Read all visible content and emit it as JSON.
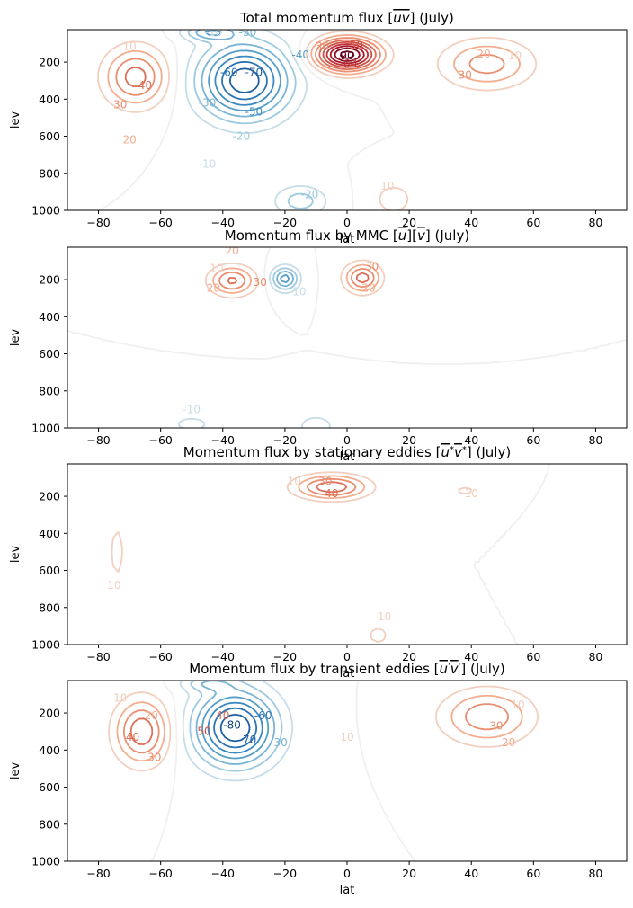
{
  "chart_data": [
    {
      "type": "contour",
      "title": "Total momentum flux [$\\overline{uv}$] (July)",
      "title_parts": [
        "Total momentum flux [",
        "uv",
        "] (July)"
      ],
      "xlabel": "lat",
      "ylabel": "lev",
      "xlim": [
        -90,
        90
      ],
      "ylim": [
        1000,
        25
      ],
      "y_inverted": true,
      "xticks": [
        -80,
        -60,
        -40,
        -20,
        0,
        20,
        40,
        60,
        80
      ],
      "yticks": [
        200,
        400,
        600,
        800,
        1000
      ],
      "colormap": "RdBu_r",
      "features": [
        {
          "lat": -68,
          "lev": 280,
          "peak": 45,
          "sx": 7,
          "sy": 110
        },
        {
          "lat": -33,
          "lev": 300,
          "peak": -78,
          "sx": 10,
          "sy": 140
        },
        {
          "lat": -44,
          "lev": 40,
          "peak": -35,
          "sx": 6,
          "sy": 30
        },
        {
          "lat": 0,
          "lev": 160,
          "peak": 95,
          "sx": 7,
          "sy": 60
        },
        {
          "lat": 45,
          "lev": 210,
          "peak": 35,
          "sx": 10,
          "sy": 90
        },
        {
          "lat": 15,
          "lev": 940,
          "peak": 15,
          "sx": 5,
          "sy": 70
        },
        {
          "lat": -15,
          "lev": 950,
          "peak": -25,
          "sx": 6,
          "sy": 60
        }
      ],
      "contour_labels": [
        {
          "lat": -70,
          "lev": 115,
          "text": "10"
        },
        {
          "lat": -65,
          "lev": 325,
          "text": "40"
        },
        {
          "lat": -73,
          "lev": 430,
          "text": "30"
        },
        {
          "lat": -70,
          "lev": 620,
          "text": "20"
        },
        {
          "lat": -43,
          "lev": 40,
          "text": "-10"
        },
        {
          "lat": -32,
          "lev": 40,
          "text": "-30"
        },
        {
          "lat": -38,
          "lev": 255,
          "text": "-60"
        },
        {
          "lat": -30,
          "lev": 255,
          "text": "-70"
        },
        {
          "lat": -30,
          "lev": 470,
          "text": "-50"
        },
        {
          "lat": -45,
          "lev": 420,
          "text": "-30"
        },
        {
          "lat": -15,
          "lev": 160,
          "text": "-40"
        },
        {
          "lat": -34,
          "lev": 600,
          "text": "-20"
        },
        {
          "lat": -45,
          "lev": 750,
          "text": "-10"
        },
        {
          "lat": -8,
          "lev": 115,
          "text": "30"
        },
        {
          "lat": 3,
          "lev": 110,
          "text": "50"
        },
        {
          "lat": 0,
          "lev": 165,
          "text": "90"
        },
        {
          "lat": 1,
          "lev": 210,
          "text": "60"
        },
        {
          "lat": -12,
          "lev": 915,
          "text": "-20"
        },
        {
          "lat": 13,
          "lev": 870,
          "text": "10"
        },
        {
          "lat": 44,
          "lev": 155,
          "text": "20"
        },
        {
          "lat": 54,
          "lev": 165,
          "text": "10"
        },
        {
          "lat": 38,
          "lev": 270,
          "text": "30"
        }
      ]
    },
    {
      "type": "contour",
      "title": "Momentum flux by MMC [$\\overline{u}$][$\\overline{v}$] (July)",
      "title_parts": [
        "Momentum flux by MMC [",
        "u",
        "][",
        "v",
        "] (July)"
      ],
      "xlabel": "lat",
      "ylabel": "lev",
      "xlim": [
        -90,
        90
      ],
      "ylim": [
        1000,
        25
      ],
      "y_inverted": true,
      "xticks": [
        -80,
        -60,
        -40,
        -20,
        0,
        20,
        40,
        60,
        80
      ],
      "yticks": [
        200,
        400,
        600,
        800,
        1000
      ],
      "colormap": "RdBu_r",
      "features": [
        {
          "lat": -37,
          "lev": 205,
          "peak": 42,
          "sx": 5,
          "sy": 55
        },
        {
          "lat": -20,
          "lev": 195,
          "peak": -45,
          "sx": 3,
          "sy": 45
        },
        {
          "lat": 5,
          "lev": 190,
          "peak": 45,
          "sx": 4,
          "sy": 55
        },
        {
          "lat": -10,
          "lev": 990,
          "peak": -15,
          "sx": 5,
          "sy": 50
        },
        {
          "lat": -50,
          "lev": 980,
          "peak": -12,
          "sx": 7,
          "sy": 50
        }
      ],
      "contour_labels": [
        {
          "lat": -37,
          "lev": 45,
          "text": "20"
        },
        {
          "lat": -42,
          "lev": 140,
          "text": "10"
        },
        {
          "lat": -43,
          "lev": 245,
          "text": "20"
        },
        {
          "lat": -28,
          "lev": 215,
          "text": "30"
        },
        {
          "lat": -16,
          "lev": 265,
          "text": "-10"
        },
        {
          "lat": 8,
          "lev": 130,
          "text": "30"
        },
        {
          "lat": 7,
          "lev": 245,
          "text": "20"
        },
        {
          "lat": -50,
          "lev": 900,
          "text": "-10"
        }
      ]
    },
    {
      "type": "contour",
      "title": "Momentum flux by stationary eddies [$\\overline{u^*v^*}$] (July)",
      "title_parts": [
        "Momentum flux by stationary eddies [",
        "u",
        "*",
        "v",
        "*",
        "] (July)"
      ],
      "xlabel": "lat",
      "ylabel": "lev",
      "xlim": [
        -90,
        90
      ],
      "ylim": [
        1000,
        25
      ],
      "y_inverted": true,
      "xticks": [
        -80,
        -60,
        -40,
        -20,
        0,
        20,
        40,
        60,
        80
      ],
      "yticks": [
        200,
        400,
        600,
        800,
        1000
      ],
      "colormap": "RdBu_r",
      "features": [
        {
          "lat": -5,
          "lev": 150,
          "peak": 48,
          "sx": 8,
          "sy": 45
        },
        {
          "lat": -74,
          "lev": 500,
          "peak": 11,
          "sx": 4,
          "sy": 250
        },
        {
          "lat": 10,
          "lev": 950,
          "peak": 12,
          "sx": 4,
          "sy": 60
        },
        {
          "lat": 38,
          "lev": 170,
          "peak": 11,
          "sx": 5,
          "sy": 40
        },
        {
          "lat": 70,
          "lev": 400,
          "peak": -10,
          "sx": 3,
          "sy": 60
        }
      ],
      "contour_labels": [
        {
          "lat": -17,
          "lev": 120,
          "text": "10"
        },
        {
          "lat": -7,
          "lev": 120,
          "text": "30"
        },
        {
          "lat": -5,
          "lev": 185,
          "text": "40"
        },
        {
          "lat": 40,
          "lev": 185,
          "text": "10"
        },
        {
          "lat": -75,
          "lev": 680,
          "text": "10"
        },
        {
          "lat": 12,
          "lev": 850,
          "text": "10"
        }
      ]
    },
    {
      "type": "contour",
      "title": "Momentum flux by transient eddies [$\\overline{u'v'}$] (July)",
      "title_parts": [
        "Momentum flux by transient eddies [",
        "u",
        "'",
        "v",
        "'",
        "] (July)"
      ],
      "xlabel": "lat",
      "ylabel": "lev",
      "xlim": [
        -90,
        90
      ],
      "ylim": [
        1000,
        25
      ],
      "y_inverted": true,
      "xticks": [
        -80,
        -60,
        -40,
        -20,
        0,
        20,
        40,
        60,
        80
      ],
      "yticks": [
        200,
        400,
        600,
        800,
        1000
      ],
      "colormap": "RdBu_r",
      "features": [
        {
          "lat": -66,
          "lev": 300,
          "peak": 48,
          "sx": 6,
          "sy": 120
        },
        {
          "lat": -36,
          "lev": 280,
          "peak": -80,
          "sx": 9,
          "sy": 140
        },
        {
          "lat": -45,
          "lev": 40,
          "peak": -22,
          "sx": 6,
          "sy": 30
        },
        {
          "lat": 45,
          "lev": 220,
          "peak": 38,
          "sx": 10,
          "sy": 100
        }
      ],
      "contour_labels": [
        {
          "lat": -73,
          "lev": 120,
          "text": "10"
        },
        {
          "lat": -63,
          "lev": 215,
          "text": "20"
        },
        {
          "lat": -69,
          "lev": 330,
          "text": "40"
        },
        {
          "lat": -62,
          "lev": 440,
          "text": "30"
        },
        {
          "lat": -40,
          "lev": 215,
          "text": "40"
        },
        {
          "lat": -37,
          "lev": 265,
          "text": "-80"
        },
        {
          "lat": -27,
          "lev": 215,
          "text": "-60"
        },
        {
          "lat": -46,
          "lev": 300,
          "text": "50"
        },
        {
          "lat": -32,
          "lev": 345,
          "text": "-70"
        },
        {
          "lat": -22,
          "lev": 360,
          "text": "-30"
        },
        {
          "lat": 0,
          "lev": 330,
          "text": "10"
        },
        {
          "lat": 55,
          "lev": 155,
          "text": "10"
        },
        {
          "lat": 48,
          "lev": 270,
          "text": "30"
        },
        {
          "lat": 52,
          "lev": 360,
          "text": "20"
        }
      ]
    }
  ]
}
